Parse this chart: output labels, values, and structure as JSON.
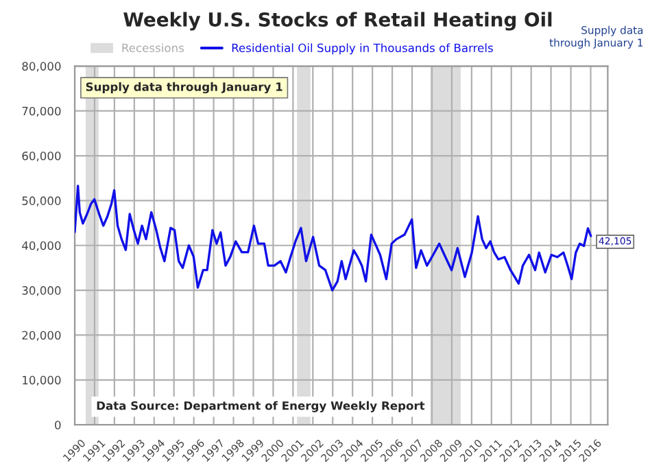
{
  "chart_data": {
    "type": "line",
    "title": "Weekly U.S. Stocks of Retail Heating Oil",
    "series": [
      {
        "name": "Residential Oil Supply in Thousands of Barrels",
        "color": "#1010e8",
        "x": [
          1990.0,
          1990.16,
          1990.25,
          1990.41,
          1990.62,
          1990.82,
          1990.99,
          1991.23,
          1991.44,
          1991.64,
          1991.85,
          1991.99,
          1992.16,
          1992.36,
          1992.57,
          1992.77,
          1992.98,
          1993.18,
          1993.39,
          1993.59,
          1993.86,
          1994.11,
          1994.31,
          1994.52,
          1994.83,
          1995.03,
          1995.24,
          1995.44,
          1995.75,
          1995.99,
          1996.2,
          1996.47,
          1996.67,
          1996.94,
          1997.15,
          1997.35,
          1997.6,
          1997.84,
          1998.11,
          1998.42,
          1998.73,
          1999.03,
          1999.24,
          1999.55,
          1999.75,
          2000.06,
          2000.37,
          2000.64,
          2000.88,
          2001.13,
          2001.4,
          2001.66,
          2002.01,
          2002.32,
          2002.63,
          2002.98,
          2003.24,
          2003.45,
          2003.65,
          2004.06,
          2004.26,
          2004.47,
          2004.67,
          2004.94,
          2005.19,
          2005.39,
          2005.7,
          2005.97,
          2006.21,
          2006.62,
          2006.99,
          2007.2,
          2007.45,
          2007.75,
          2008.06,
          2008.37,
          2008.68,
          2008.99,
          2009.29,
          2009.66,
          2010.01,
          2010.32,
          2010.53,
          2010.73,
          2010.94,
          2011.14,
          2011.35,
          2011.66,
          2011.96,
          2012.17,
          2012.37,
          2012.58,
          2012.89,
          2013.2,
          2013.4,
          2013.71,
          2014.02,
          2014.32,
          2014.63,
          2014.84,
          2015.04,
          2015.25,
          2015.45,
          2015.66,
          2015.86,
          2016.01
        ],
        "values": [
          43000,
          53300,
          47400,
          44900,
          47000,
          49300,
          50300,
          47000,
          44400,
          46400,
          49300,
          52300,
          44400,
          41400,
          39000,
          47000,
          43400,
          40400,
          44400,
          41400,
          47400,
          43400,
          39500,
          36500,
          43900,
          43400,
          36500,
          35000,
          40000,
          37500,
          30600,
          34500,
          34500,
          43400,
          40400,
          42900,
          35500,
          37500,
          40900,
          38500,
          38500,
          44400,
          40400,
          40400,
          35500,
          35500,
          36500,
          34000,
          37500,
          41000,
          43900,
          36500,
          41900,
          35500,
          34500,
          30000,
          32000,
          36500,
          32500,
          38900,
          37400,
          35500,
          32000,
          42400,
          39900,
          37900,
          32500,
          40400,
          41400,
          42400,
          45800,
          35000,
          38900,
          35500,
          37900,
          40400,
          37400,
          34500,
          39400,
          33000,
          38400,
          46500,
          41400,
          39400,
          40900,
          38400,
          36900,
          37400,
          34500,
          33000,
          31500,
          35500,
          37900,
          34500,
          38400,
          34000,
          37900,
          37400,
          38400,
          35500,
          32500,
          38400,
          40400,
          39900,
          43800,
          42105
        ]
      }
    ],
    "bands": [
      {
        "axis": "x",
        "from": 1990.55,
        "to": 1991.2,
        "label": "Recessions",
        "color": "#dcdcdc"
      },
      {
        "axis": "x",
        "from": 2001.2,
        "to": 2001.88,
        "color": "#dcdcdc"
      },
      {
        "axis": "x",
        "from": 2007.92,
        "to": 2009.45,
        "color": "#dcdcdc"
      }
    ],
    "xlim": [
      1990,
      2016.86
    ],
    "xticks": [
      1990,
      1991,
      1992,
      1993,
      1994,
      1995,
      1996,
      1997,
      1998,
      1999,
      2000,
      2001,
      2002,
      2003,
      2004,
      2005,
      2006,
      2007,
      2008,
      2009,
      2010,
      2011,
      2012,
      2013,
      2014,
      2015,
      2016
    ],
    "ylim": [
      0,
      80000
    ],
    "yticks": [
      {
        "value": 0,
        "label": "0"
      },
      {
        "value": 10000,
        "label": "10,000"
      },
      {
        "value": 20000,
        "label": "20,000"
      },
      {
        "value": 30000,
        "label": "30,000"
      },
      {
        "value": 40000,
        "label": "40,000"
      },
      {
        "value": 50000,
        "label": "50,000"
      },
      {
        "value": 60000,
        "label": "60,000"
      },
      {
        "value": 70000,
        "label": "70,000"
      },
      {
        "value": 80000,
        "label": "80,000"
      }
    ],
    "annotations": [
      "Supply data through January 1",
      "Supply data\nthrough January 1",
      "Data Source: Department of Energy Weekly Report",
      {
        "text": "42,105",
        "x": 2016.01,
        "y": 42105
      }
    ],
    "grid": true,
    "legend": "top"
  }
}
